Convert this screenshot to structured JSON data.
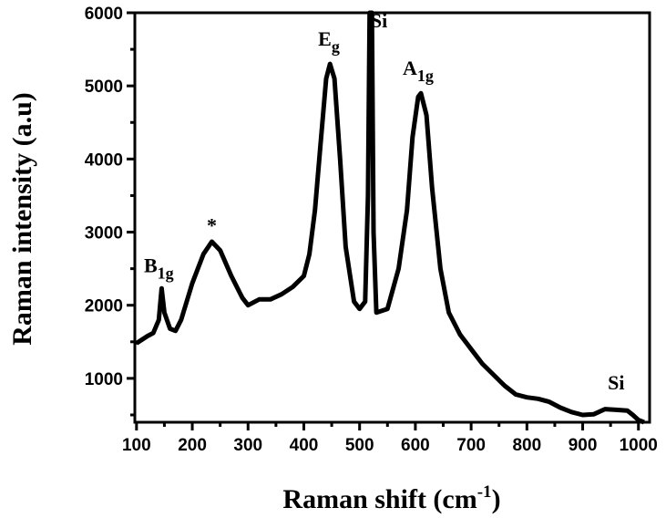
{
  "chart_data": {
    "type": "line",
    "title": "",
    "xlabel": "Raman shift (cm",
    "xlabel_sup": "-1",
    "xlabel_end": ")",
    "ylabel": "Raman intensity (a.u)",
    "xlim": [
      97,
      1020
    ],
    "ylim": [
      400,
      6000
    ],
    "xticks": [
      100,
      200,
      300,
      400,
      500,
      600,
      700,
      800,
      900,
      1000
    ],
    "yticks": [
      1000,
      2000,
      3000,
      4000,
      5000,
      6000
    ],
    "grid": false,
    "line_color": "#000000",
    "series": [
      {
        "x": [
          100,
          120,
          130,
          140,
          145,
          150,
          160,
          170,
          180,
          200,
          220,
          235,
          250,
          270,
          290,
          300,
          320,
          340,
          360,
          380,
          400,
          410,
          420,
          430,
          440,
          447,
          455,
          465,
          475,
          490,
          500,
          510,
          515,
          518,
          522,
          525,
          530,
          550,
          570,
          585,
          595,
          605,
          610,
          620,
          630,
          645,
          660,
          680,
          700,
          720,
          740,
          760,
          780,
          800,
          820,
          840,
          860,
          880,
          900,
          920,
          940,
          960,
          980,
          990,
          1000,
          1010
        ],
        "y": [
          1480,
          1580,
          1620,
          1800,
          2230,
          1900,
          1680,
          1650,
          1800,
          2300,
          2700,
          2870,
          2750,
          2400,
          2100,
          2000,
          2080,
          2080,
          2150,
          2250,
          2400,
          2700,
          3300,
          4200,
          5100,
          5300,
          5100,
          4000,
          2800,
          2050,
          1950,
          2050,
          3500,
          6000,
          6000,
          3000,
          1900,
          1950,
          2500,
          3300,
          4300,
          4850,
          4900,
          4600,
          3600,
          2500,
          1900,
          1600,
          1400,
          1200,
          1050,
          900,
          780,
          740,
          720,
          680,
          600,
          540,
          500,
          510,
          580,
          570,
          560,
          500,
          430,
          400
        ]
      }
    ],
    "annotations": [
      {
        "text": "B",
        "sub": "1g",
        "x": 140,
        "y": 2450
      },
      {
        "text": "*",
        "x": 235,
        "y": 3000
      },
      {
        "text": "E",
        "sub": "g",
        "x": 445,
        "y": 5550
      },
      {
        "text": "Si",
        "x": 535,
        "y": 5800
      },
      {
        "text": "A",
        "sub": "1g",
        "x": 605,
        "y": 5150
      },
      {
        "text": "Si",
        "x": 960,
        "y": 850
      }
    ]
  }
}
